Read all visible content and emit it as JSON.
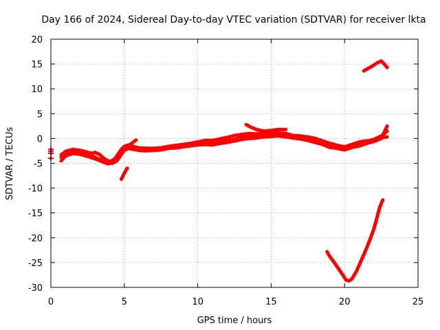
{
  "chart_data": {
    "type": "line",
    "title": "Day 166 of 2024, Sidereal Day-to-day VTEC variation (SDTVAR) for receiver lkta",
    "xlabel": "GPS time / hours",
    "ylabel": "SDTVAR / TECUs",
    "xlim": [
      0,
      25
    ],
    "ylim": [
      -30,
      20
    ],
    "xticks": [
      0,
      5,
      10,
      15,
      20,
      25
    ],
    "yticks": [
      -30,
      -25,
      -20,
      -15,
      -10,
      -5,
      0,
      5,
      10,
      15,
      20
    ],
    "grid": true,
    "legend": "none",
    "color": "#ff0000",
    "series": [
      {
        "x": [
          0.7,
          1.0,
          1.5,
          2.0,
          2.5,
          2.8,
          3.0,
          3.3,
          3.6,
          3.9,
          4.2,
          4.5,
          4.8,
          5.0,
          5.3,
          5.6,
          6.0,
          6.5,
          7.0,
          7.5,
          8.0,
          8.5,
          9.0,
          9.5,
          10.0,
          10.5,
          11.0,
          11.5,
          12.0,
          12.5,
          13.0,
          13.5,
          14.0,
          14.5,
          15.0,
          15.5,
          16.0,
          16.5,
          17.0,
          17.5,
          18.0,
          18.5,
          19.0,
          19.5,
          20.0,
          20.5,
          21.0,
          21.5,
          22.0,
          22.5,
          22.9
        ],
        "y": [
          -4.5,
          -3.5,
          -3.0,
          -3.2,
          -3.6,
          -3.9,
          -4.1,
          -4.4,
          -4.8,
          -5.1,
          -4.8,
          -3.5,
          -2.2,
          -1.6,
          -1.3,
          -1.6,
          -1.9,
          -2.0,
          -2.0,
          -1.9,
          -1.6,
          -1.4,
          -1.2,
          -1.0,
          -0.7,
          -0.4,
          -0.4,
          -0.1,
          0.2,
          0.6,
          0.8,
          1.0,
          0.9,
          1.0,
          1.2,
          1.1,
          1.0,
          0.6,
          0.5,
          0.3,
          0.0,
          -0.5,
          -1.0,
          -1.4,
          -1.7,
          -1.2,
          -0.7,
          -0.5,
          -0.3,
          0.2,
          0.3
        ]
      },
      {
        "x": [
          0.7,
          1.0,
          1.5,
          2.0,
          2.5,
          2.8,
          3.0,
          3.3,
          3.6,
          3.9,
          4.2,
          4.5,
          4.8,
          5.0,
          5.3,
          5.6,
          6.0,
          6.5,
          7.0,
          7.5,
          8.0,
          8.5,
          9.0,
          9.5,
          10.0,
          10.5,
          11.0,
          11.5,
          12.0,
          12.5,
          13.0,
          13.5,
          14.0,
          14.5,
          15.0,
          15.5,
          16.0,
          16.5,
          17.0,
          17.5,
          18.0,
          18.5,
          19.0,
          19.5,
          20.0,
          20.5,
          21.0,
          21.5,
          22.0,
          22.5,
          22.9
        ],
        "y": [
          -3.8,
          -3.0,
          -2.6,
          -2.8,
          -3.2,
          -3.5,
          -3.8,
          -4.2,
          -4.5,
          -4.8,
          -4.4,
          -3.8,
          -2.8,
          -2.1,
          -1.7,
          -1.9,
          -2.1,
          -2.2,
          -2.2,
          -2.1,
          -1.8,
          -1.7,
          -1.5,
          -1.3,
          -1.0,
          -0.9,
          -1.0,
          -0.6,
          -0.5,
          -0.2,
          0.2,
          0.3,
          0.4,
          0.6,
          0.7,
          0.8,
          0.6,
          0.4,
          0.2,
          -0.2,
          -0.5,
          -1.0,
          -1.6,
          -1.8,
          -2.0,
          -1.5,
          -1.2,
          -0.7,
          -0.2,
          0.5,
          1.5
        ]
      },
      {
        "x": [
          0.7,
          1.0,
          1.5,
          2.0,
          2.5,
          2.8,
          3.0,
          3.3,
          3.6,
          3.9,
          4.2,
          4.5,
          4.8,
          5.0,
          5.3,
          5.6,
          6.0,
          6.5,
          7.0,
          7.5,
          8.0,
          8.5,
          9.0,
          9.5,
          10.0,
          10.5,
          11.0,
          11.5,
          12.0,
          12.5,
          13.0,
          13.5,
          14.0,
          14.5,
          15.0,
          15.5,
          16.0,
          16.5,
          17.0,
          17.5,
          18.0,
          18.5,
          19.0,
          19.5,
          20.0,
          20.5,
          21.0,
          21.5,
          22.0,
          22.5,
          22.9
        ],
        "y": [
          -3.3,
          -2.6,
          -2.2,
          -2.4,
          -2.8,
          -3.0,
          -2.8,
          -3.2,
          -4.0,
          -4.5,
          -5.0,
          -4.5,
          -3.2,
          -2.4,
          -2.0,
          -2.2,
          -2.4,
          -2.5,
          -2.4,
          -2.3,
          -2.0,
          -1.9,
          -1.7,
          -1.5,
          -1.3,
          -1.2,
          -1.3,
          -1.0,
          -0.8,
          -0.5,
          -0.2,
          0.0,
          0.1,
          0.3,
          0.4,
          0.5,
          0.3,
          0.1,
          -0.1,
          -0.4,
          -0.8,
          -1.2,
          -1.8,
          -2.0,
          -2.3,
          -1.8,
          -1.5,
          -1.0,
          -0.6,
          0.0,
          2.5
        ]
      },
      {
        "x": [
          4.1,
          4.4,
          4.7,
          4.9,
          5.1,
          5.3,
          5.5,
          5.8
        ],
        "y": [
          -5.0,
          -4.2,
          -3.5,
          -2.5,
          -2.0,
          -1.5,
          -1.0,
          -0.3
        ]
      },
      {
        "x": [
          4.8,
          5.0,
          5.2
        ],
        "y": [
          -8.2,
          -7.0,
          -6.0
        ]
      },
      {
        "x": [
          0.0,
          0.0,
          0.0,
          0.0
        ],
        "y": [
          -2.2,
          -2.6,
          -3.0,
          -4.0
        ]
      },
      {
        "x": [
          13.3,
          13.6,
          14.0,
          14.5,
          15.0,
          15.5,
          16.0
        ],
        "y": [
          2.8,
          2.3,
          1.8,
          1.5,
          1.6,
          1.8,
          1.8
        ]
      },
      {
        "x": [
          18.8,
          19.0,
          19.3,
          19.6,
          19.9,
          20.1,
          20.3,
          20.5,
          20.8,
          21.1,
          21.4,
          21.7,
          22.0,
          22.2,
          22.4,
          22.6
        ],
        "y": [
          -22.8,
          -23.8,
          -25.0,
          -26.3,
          -27.6,
          -28.5,
          -28.7,
          -28.3,
          -26.8,
          -24.8,
          -22.8,
          -20.6,
          -18.2,
          -16.0,
          -13.8,
          -12.4
        ]
      },
      {
        "x": [
          21.3,
          21.6,
          21.9,
          22.2,
          22.5,
          22.7,
          22.9
        ],
        "y": [
          13.6,
          14.1,
          14.6,
          15.2,
          15.6,
          15.0,
          14.3
        ]
      }
    ]
  }
}
